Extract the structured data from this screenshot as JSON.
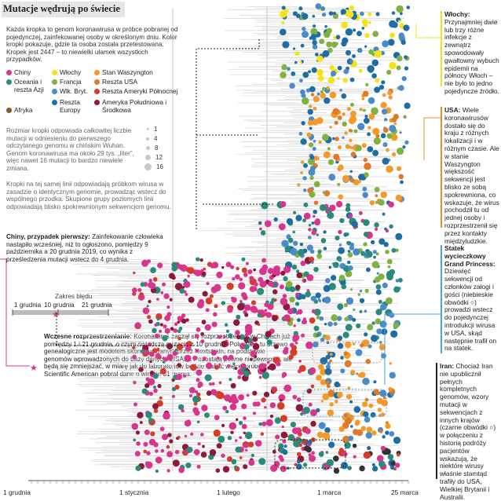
{
  "header": {
    "title": "Mutacje wędrują po świecie",
    "intro": "Każda kropka to genom koronawirusa w próbce pobranej od pojedynczej, zainfekowanej osoby w określonym dniu. Kolor kropki pokazuje, gdzie ta osoba została przetestowana. Kropek jest 2447 – to niewielki ułamek wszystkich przypadków."
  },
  "legend": {
    "items": [
      {
        "label": "Chiny",
        "color": "#d8358f"
      },
      {
        "label": "Włochy",
        "color": "#f2e419"
      },
      {
        "label": "Stan Waszyngton",
        "color": "#f39a2b"
      },
      {
        "label": "Oceania i reszta Azji",
        "color": "#2a8a7c"
      },
      {
        "label": "Francja",
        "color": "#7fb241"
      },
      {
        "label": "Reszta USA",
        "color": "#e07a26"
      },
      {
        "label": "Wlk. Bryt.",
        "color": "#4b8bc9"
      },
      {
        "label": "Reszta Ameryki Północnej",
        "color": "#d43d2a"
      },
      {
        "label": "Afryka",
        "color": "#8a5a2b"
      },
      {
        "label": "Reszta Europy",
        "color": "#1f6ea3"
      },
      {
        "label": "Ameryka Południowa i Środkowa",
        "color": "#8c1a3c"
      }
    ],
    "size_text": "Rozmiar kropki odpowiada całkowitej liczbie mutacji w odniesieniu do pierwszego odczytanego genomu w chińskim Wuhan. Genom koronawirusa ma około 29 tys. „liter”, więc nawet 16 mutacji to bardzo niewiele zmiana.",
    "sizes": [
      "1",
      "4",
      "8",
      "12",
      "16"
    ],
    "lines_text": "Kropki na tej samej linii odpowiadają próbkom wirusa w zasadzie o identycznym genomie, prowadząc wstecz do wspólnego przodka. Skupione grupy poziomych linii odpowiadają blisko spokrewnionym sekwencjom genomu."
  },
  "annotations": {
    "china_title": "Chiny, przypadek pierwszy:",
    "china_text": "Zainfekowanie człowieka nastąpiło wcześniej, niż to ogłoszono, pomiędzy 9 października a 20 grudnia 2019, co wynika z prześledzenia mutacji wstecz do 4 grudnia.",
    "error_label": "Zakres błędu",
    "error_ticks": [
      "1 grudnia",
      "10 grudnia",
      "21 grudnia"
    ],
    "early_title": "Wczesne rozprzestrzenianie:",
    "early_text": "Koronawirus zaczął się rozprzestrzeniać w Chinach już pomiędzy 1 i 21 grudnia, o czym świadczą mutacje z 10 grudnia. Pokazane tu drzewo genealogiczne jest modelem skonstruowanym przez Nextstrain, na podstawie genomów wprowadzonych do bazy danych GISAID. Pozostają pewne niepewności, ale będą się zmniejszać, w miarę jak do laboratoriów będzie trafiać więcej próbek. Scientific American pobrał dane o wirusie 31 marca."
  },
  "right_panel": {
    "italy_title": "Włochy:",
    "italy_text": "Przynajmniej dwie lub trzy różne infekcje z zewnątrz spowodowały gwałtowny wybuch epidemii na północy Włoch – nie było to jedno pojedyncze źródło.",
    "usa_title": "USA:",
    "usa_text": "Wiele koronawirusów dostało się do kraju z różnych lokalizacji i w różnym czasie. Ale w stanie Waszyngton większość sekwencji jest blisko ze sobą spokrewniona, co wskazuje, że wirus pochodził tu od jednej osoby i rozprzestrzenił się przez kontakty międzyludzkie.",
    "ship_title": "Statek wycieczkowy Grand Princess:",
    "ship_text": "Dziewięć sekwencji od członków załogi i gości (niebieskie obwódki ○) prowadzi wstecz do pojedynczej introdukcji wirusa w USA, skąd następnie trafił on na statek.",
    "iran_title": "Iran:",
    "iran_text": "Chociaż Iran nie upublicznił pełnych kompletnych genomów, wzory mutacji w sekwencjach z innych krajów (czarne obwódki ○) w połączeniu z historią podróży pacjentów wskazują, że niektóre wirusy właśnie stamtąd trafiły do USA, Wielkiej Brytanii i Australii."
  },
  "axis": {
    "ticks": [
      "1 grudnia",
      "1 stycznia",
      "1 lutego",
      "1 marca",
      "25 marca"
    ]
  }
}
